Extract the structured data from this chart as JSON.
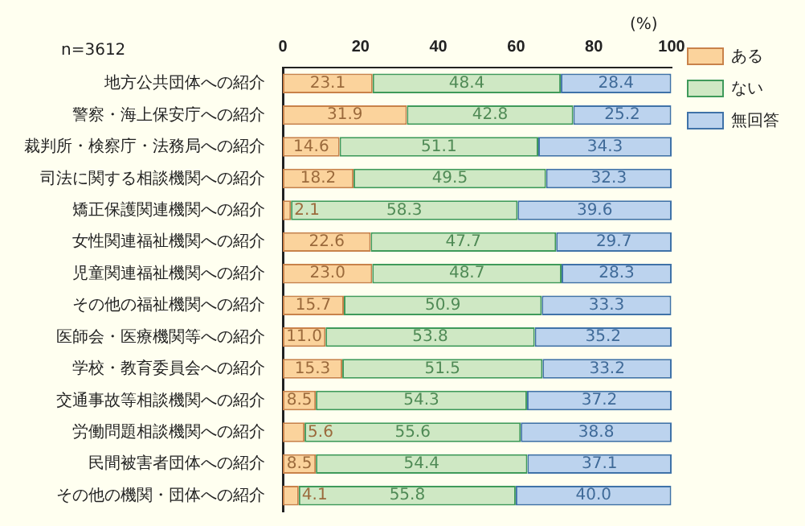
{
  "chart_data": {
    "type": "bar",
    "orientation": "horizontal",
    "stacked": true,
    "categories": [
      "地方公共団体への紹介",
      "警察・海上保安庁への紹介",
      "裁判所・検察庁・法務局への紹介",
      "司法に関する相談機関への紹介",
      "矯正保護関連機関への紹介",
      "女性関連福祉機関への紹介",
      "児童関連福祉機関への紹介",
      "その他の福祉機関への紹介",
      "医師会・医療機関等への紹介",
      "学校・教育委員会への紹介",
      "交通事故等相談機関への紹介",
      "労働問題相談機関への紹介",
      "民間被害者団体への紹介",
      "その他の機関・団体への紹介"
    ],
    "series": [
      {
        "name": "ある",
        "color": "#fbd39c",
        "values": [
          23.1,
          31.9,
          14.6,
          18.2,
          2.1,
          22.6,
          23.0,
          15.7,
          11.0,
          15.3,
          8.5,
          5.6,
          8.5,
          4.1
        ],
        "value_labels": [
          "23.1",
          "31.9",
          "14.6",
          "18.2",
          "2.1",
          "22.6",
          "23.0",
          "15.7",
          "11.0",
          "15.3",
          "8.5",
          "5.6",
          "8.5",
          "4.1"
        ]
      },
      {
        "name": "ない",
        "color": "#cfe8c4",
        "values": [
          48.4,
          42.8,
          51.1,
          49.5,
          58.3,
          47.7,
          48.7,
          50.9,
          53.8,
          51.5,
          54.3,
          55.6,
          54.4,
          55.8
        ],
        "value_labels": [
          "48.4",
          "42.8",
          "51.1",
          "49.5",
          "58.3",
          "47.7",
          "48.7",
          "50.9",
          "53.8",
          "51.5",
          "54.3",
          "55.6",
          "54.4",
          "55.8"
        ]
      },
      {
        "name": "無回答",
        "color": "#bcd3ee",
        "values": [
          28.4,
          25.2,
          34.3,
          32.3,
          39.6,
          29.7,
          28.3,
          33.3,
          35.2,
          33.2,
          37.2,
          38.8,
          37.1,
          40.0
        ],
        "value_labels": [
          "28.4",
          "25.2",
          "34.3",
          "32.3",
          "39.6",
          "29.7",
          "28.3",
          "33.3",
          "35.2",
          "33.2",
          "37.2",
          "38.8",
          "37.1",
          "40.0"
        ]
      }
    ],
    "xlim": [
      0,
      100
    ],
    "xticks": [
      0,
      20,
      40,
      60,
      80,
      100
    ],
    "xlabel": "(%)",
    "legend": "right",
    "grid": false,
    "annotations": [
      "n=3612"
    ]
  }
}
